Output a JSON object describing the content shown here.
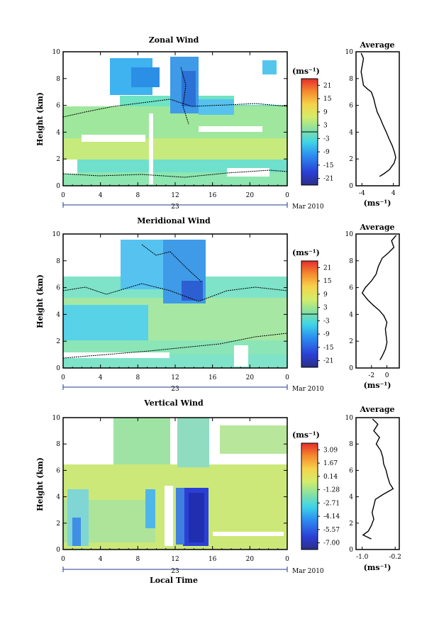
{
  "chart_data": [
    {
      "type": "heatmap",
      "title": "Zonal Wind",
      "ylabel": "Height (km)",
      "ylim": [
        0,
        10
      ],
      "xlim": [
        0,
        24
      ],
      "x_ticks": [
        "0",
        "4",
        "8",
        "12",
        "16",
        "20",
        "0"
      ],
      "y_ticks": [
        "0",
        "2",
        "4",
        "6",
        "8",
        "10"
      ],
      "date_day": "23",
      "date_month_year": "Mar 2010",
      "colorbar": {
        "unit": "(ms⁻¹)",
        "ticks": [
          "21",
          "15",
          "9",
          "3",
          "-3",
          "-9",
          "-15",
          "-21"
        ],
        "min": -24,
        "max": 24
      },
      "profile": {
        "title": "Average",
        "xlabel": "(ms⁻¹)",
        "x_ticks": [
          "-4",
          "4"
        ],
        "xlim": [
          -5.5,
          5.5
        ],
        "x_tick_values": [
          -4,
          4
        ],
        "points": [
          [
            -4.2,
            9.9
          ],
          [
            -3.6,
            9.5
          ],
          [
            -3.9,
            9.0
          ],
          [
            -4.2,
            8.5
          ],
          [
            -3.9,
            8.0
          ],
          [
            -3.6,
            7.5
          ],
          [
            -2.5,
            7.2
          ],
          [
            -1.6,
            7.0
          ],
          [
            -1.0,
            6.5
          ],
          [
            -0.6,
            6.0
          ],
          [
            -0.1,
            5.5
          ],
          [
            0.7,
            5.0
          ],
          [
            1.4,
            4.5
          ],
          [
            2.2,
            4.0
          ],
          [
            2.9,
            3.5
          ],
          [
            3.7,
            3.0
          ],
          [
            4.3,
            2.5
          ],
          [
            4.6,
            2.1
          ],
          [
            4.2,
            1.7
          ],
          [
            3.0,
            1.2
          ],
          [
            1.6,
            0.9
          ],
          [
            0.5,
            0.7
          ]
        ]
      }
    },
    {
      "type": "heatmap",
      "title": "Meridional Wind",
      "ylabel": "Height (km)",
      "ylim": [
        0,
        10
      ],
      "xlim": [
        0,
        24
      ],
      "x_ticks": [
        "0",
        "4",
        "8",
        "12",
        "16",
        "20",
        "0"
      ],
      "y_ticks": [
        "0",
        "2",
        "4",
        "6",
        "8",
        "10"
      ],
      "date_day": "23",
      "date_month_year": "Mar 2010",
      "colorbar": {
        "unit": "(ms⁻¹)",
        "ticks": [
          "21",
          "15",
          "9",
          "3",
          "-3",
          "-9",
          "-15",
          "-21"
        ],
        "min": -24,
        "max": 24
      },
      "profile": {
        "title": "Average",
        "xlabel": "(ms⁻¹)",
        "x_ticks": [
          "-2",
          "0"
        ],
        "xlim": [
          -4.0,
          1.6
        ],
        "x_tick_values": [
          -2,
          0
        ],
        "points": [
          [
            1.2,
            9.9
          ],
          [
            0.6,
            9.5
          ],
          [
            0.9,
            9.0
          ],
          [
            0.2,
            8.6
          ],
          [
            -0.6,
            8.2
          ],
          [
            -1.1,
            7.6
          ],
          [
            -1.4,
            7.0
          ],
          [
            -2.0,
            6.5
          ],
          [
            -2.8,
            6.0
          ],
          [
            -3.2,
            5.6
          ],
          [
            -2.5,
            5.1
          ],
          [
            -1.8,
            4.7
          ],
          [
            -1.0,
            4.3
          ],
          [
            -0.4,
            3.9
          ],
          [
            0.0,
            3.4
          ],
          [
            -0.2,
            2.9
          ],
          [
            -0.1,
            2.4
          ],
          [
            0.0,
            1.9
          ],
          [
            -0.2,
            1.4
          ],
          [
            -0.6,
            0.9
          ],
          [
            -0.9,
            0.6
          ]
        ]
      }
    },
    {
      "type": "heatmap",
      "title": "Vertical Wind",
      "ylabel": "Height (km)",
      "xlabel": "Local Time",
      "ylim": [
        0,
        10
      ],
      "xlim": [
        0,
        24
      ],
      "x_ticks": [
        "0",
        "4",
        "8",
        "12",
        "16",
        "20",
        "0"
      ],
      "y_ticks": [
        "0",
        "2",
        "4",
        "6",
        "8",
        "10"
      ],
      "date_day": "23",
      "date_month_year": "Mar 2010",
      "colorbar": {
        "unit": "(ms⁻¹)",
        "ticks": [
          "3.09",
          "1.67",
          "0.14",
          "-1.28",
          "-2.71",
          "-4.14",
          "-5.57",
          "-7.00"
        ],
        "min": -7.7,
        "max": 3.8
      },
      "profile": {
        "title": "Average",
        "xlabel": "(ms⁻¹)",
        "x_ticks": [
          "-1.0",
          "-0.2"
        ],
        "xlim": [
          -1.15,
          -0.1
        ],
        "x_tick_values": [
          -1.0,
          -0.2
        ],
        "points": [
          [
            -0.75,
            9.9
          ],
          [
            -0.62,
            9.5
          ],
          [
            -0.72,
            9.0
          ],
          [
            -0.58,
            8.5
          ],
          [
            -0.66,
            8.0
          ],
          [
            -0.55,
            7.5
          ],
          [
            -0.5,
            7.0
          ],
          [
            -0.48,
            6.5
          ],
          [
            -0.42,
            6.0
          ],
          [
            -0.38,
            5.5
          ],
          [
            -0.33,
            5.0
          ],
          [
            -0.25,
            4.6
          ],
          [
            -0.48,
            4.2
          ],
          [
            -0.68,
            3.8
          ],
          [
            -0.72,
            3.3
          ],
          [
            -0.76,
            2.8
          ],
          [
            -0.72,
            2.3
          ],
          [
            -0.78,
            1.8
          ],
          [
            -0.85,
            1.4
          ],
          [
            -0.98,
            1.1
          ],
          [
            -0.78,
            0.8
          ]
        ]
      }
    }
  ]
}
